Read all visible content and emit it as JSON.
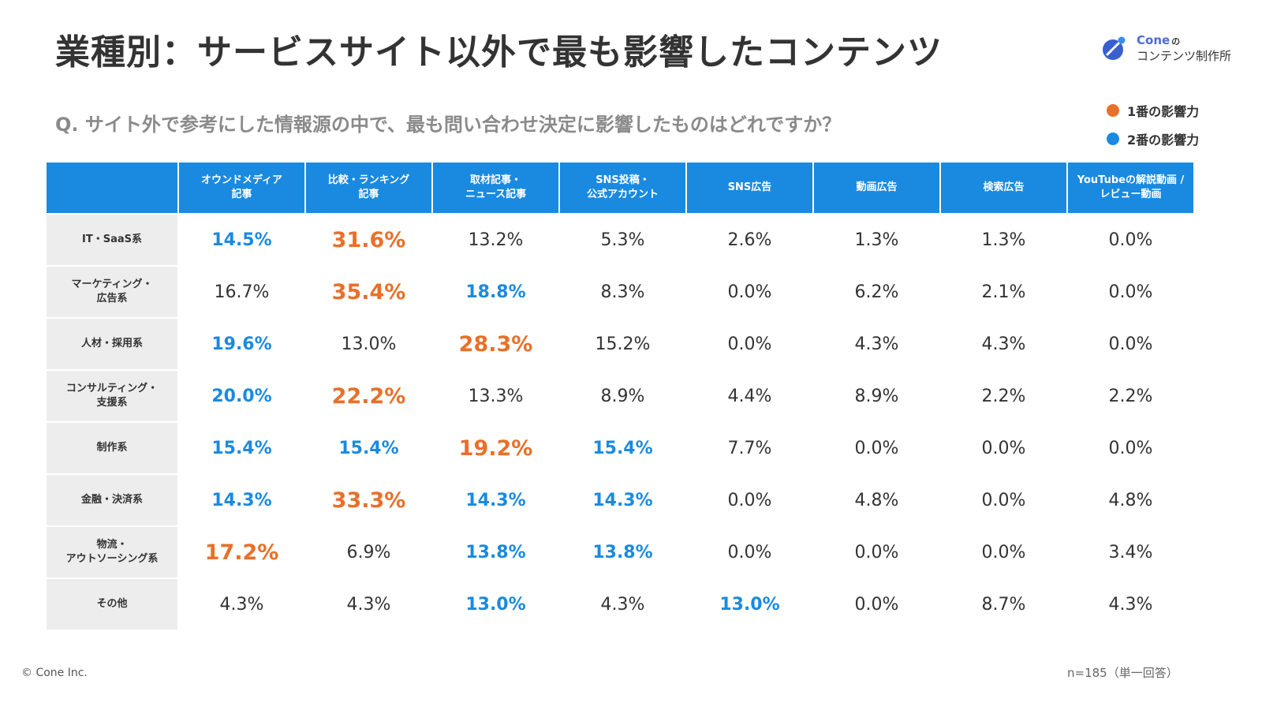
{
  "title": "業種別：サービスサイト以外で最も影響したコンテンツ",
  "logo": {
    "line1": "Cone",
    "line1_suffix": "の",
    "line2": "コンテンツ制作所"
  },
  "question": "Q. サイト外で参考にした情報源の中で、最も問い合わせ決定に影響したものはどれですか？",
  "legend": [
    {
      "label": "1番の影響力",
      "color": "#e8702a"
    },
    {
      "label": "2番の影響力",
      "color": "#1a8ae0"
    }
  ],
  "colors": {
    "header": "#1a8ae0",
    "first": "#e8702a",
    "second": "#1a8ae0",
    "rowhead_bg": "#ededed"
  },
  "chart_data": {
    "type": "table",
    "columns": [
      "オウンドメディア\n記事",
      "比較・ランキング\n記事",
      "取材記事・\nニュース記事",
      "SNS投稿・\n公式アカウント",
      "SNS広告",
      "動画広告",
      "検索広告",
      "YouTubeの解説動画 /\nレビュー動画"
    ],
    "rows": [
      {
        "label": "IT・SaaS系",
        "values": [
          "14.5%",
          "31.6%",
          "13.2%",
          "5.3%",
          "2.6%",
          "1.3%",
          "1.3%",
          "0.0%"
        ],
        "first": [
          1
        ],
        "second": [
          0
        ]
      },
      {
        "label": "マーケティング・\n広告系",
        "values": [
          "16.7%",
          "35.4%",
          "18.8%",
          "8.3%",
          "0.0%",
          "6.2%",
          "2.1%",
          "0.0%"
        ],
        "first": [
          1
        ],
        "second": [
          2
        ]
      },
      {
        "label": "人材・採用系",
        "values": [
          "19.6%",
          "13.0%",
          "28.3%",
          "15.2%",
          "0.0%",
          "4.3%",
          "4.3%",
          "0.0%"
        ],
        "first": [
          2
        ],
        "second": [
          0
        ]
      },
      {
        "label": "コンサルティング・\n支援系",
        "values": [
          "20.0%",
          "22.2%",
          "13.3%",
          "8.9%",
          "4.4%",
          "8.9%",
          "2.2%",
          "2.2%"
        ],
        "first": [
          1
        ],
        "second": [
          0
        ]
      },
      {
        "label": "制作系",
        "values": [
          "15.4%",
          "15.4%",
          "19.2%",
          "15.4%",
          "7.7%",
          "0.0%",
          "0.0%",
          "0.0%"
        ],
        "first": [
          2
        ],
        "second": [
          0,
          1,
          3
        ]
      },
      {
        "label": "金融・決済系",
        "values": [
          "14.3%",
          "33.3%",
          "14.3%",
          "14.3%",
          "0.0%",
          "4.8%",
          "0.0%",
          "4.8%"
        ],
        "first": [
          1
        ],
        "second": [
          0,
          2,
          3
        ]
      },
      {
        "label": "物流・\nアウトソーシング系",
        "values": [
          "17.2%",
          "6.9%",
          "13.8%",
          "13.8%",
          "0.0%",
          "0.0%",
          "0.0%",
          "3.4%"
        ],
        "first": [
          0
        ],
        "second": [
          2,
          3
        ]
      },
      {
        "label": "その他",
        "values": [
          "4.3%",
          "4.3%",
          "13.0%",
          "4.3%",
          "13.0%",
          "0.0%",
          "8.7%",
          "4.3%"
        ],
        "first": [],
        "second": [
          2,
          4
        ]
      }
    ]
  },
  "footer": {
    "copyright": "© Cone Inc.",
    "note": "n=185（単一回答）"
  }
}
